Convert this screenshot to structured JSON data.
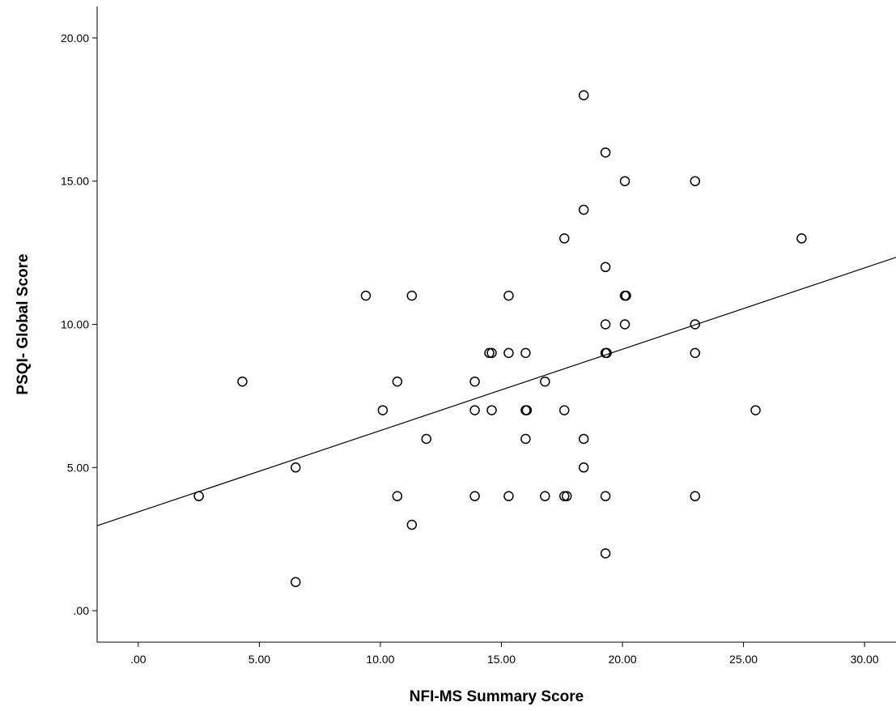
{
  "chart_data": {
    "type": "scatter",
    "title": "",
    "xlabel": "NFI-MS Summary Score",
    "ylabel": "PSQI- Global Score",
    "xlim": [
      -1.7,
      31.3
    ],
    "ylim": [
      -1.1,
      21.1
    ],
    "x_ticks": [
      0,
      5,
      10,
      15,
      20,
      25,
      30
    ],
    "x_tick_labels": [
      ".00",
      "5.00",
      "10.00",
      "15.00",
      "20.00",
      "25.00",
      "30.00"
    ],
    "y_ticks": [
      0,
      5,
      10,
      15,
      20
    ],
    "y_tick_labels": [
      ".00",
      "5.00",
      "10.00",
      "15.00",
      "20.00"
    ],
    "grid": false,
    "series": [
      {
        "marker": "open-circle",
        "points": [
          [
            2.5,
            4
          ],
          [
            4.3,
            8
          ],
          [
            6.5,
            5
          ],
          [
            6.5,
            1
          ],
          [
            9.4,
            11
          ],
          [
            10.1,
            7
          ],
          [
            10.7,
            8
          ],
          [
            10.7,
            4
          ],
          [
            11.3,
            11
          ],
          [
            11.3,
            3
          ],
          [
            11.9,
            6
          ],
          [
            13.9,
            8
          ],
          [
            13.9,
            7
          ],
          [
            13.9,
            4
          ],
          [
            14.5,
            9
          ],
          [
            14.6,
            9
          ],
          [
            14.6,
            7
          ],
          [
            15.3,
            11
          ],
          [
            15.3,
            9
          ],
          [
            15.3,
            4
          ],
          [
            16.0,
            9
          ],
          [
            16.0,
            7
          ],
          [
            16.05,
            7
          ],
          [
            16.0,
            6
          ],
          [
            16.8,
            8
          ],
          [
            16.8,
            4
          ],
          [
            17.6,
            13
          ],
          [
            17.6,
            7
          ],
          [
            17.6,
            4
          ],
          [
            17.7,
            4
          ],
          [
            18.4,
            18
          ],
          [
            18.4,
            14
          ],
          [
            18.4,
            6
          ],
          [
            18.4,
            5
          ],
          [
            19.3,
            16
          ],
          [
            19.3,
            12
          ],
          [
            19.3,
            10
          ],
          [
            19.3,
            9
          ],
          [
            19.35,
            9
          ],
          [
            19.3,
            4
          ],
          [
            19.3,
            2
          ],
          [
            20.1,
            15
          ],
          [
            20.1,
            11
          ],
          [
            20.15,
            11
          ],
          [
            20.1,
            10
          ],
          [
            23.0,
            15
          ],
          [
            23.0,
            10
          ],
          [
            23.0,
            9
          ],
          [
            23.0,
            4
          ],
          [
            25.5,
            7
          ],
          [
            27.4,
            13
          ]
        ]
      }
    ],
    "fit_line": {
      "type": "linear",
      "intercept": 3.45,
      "slope": 0.284
    }
  }
}
